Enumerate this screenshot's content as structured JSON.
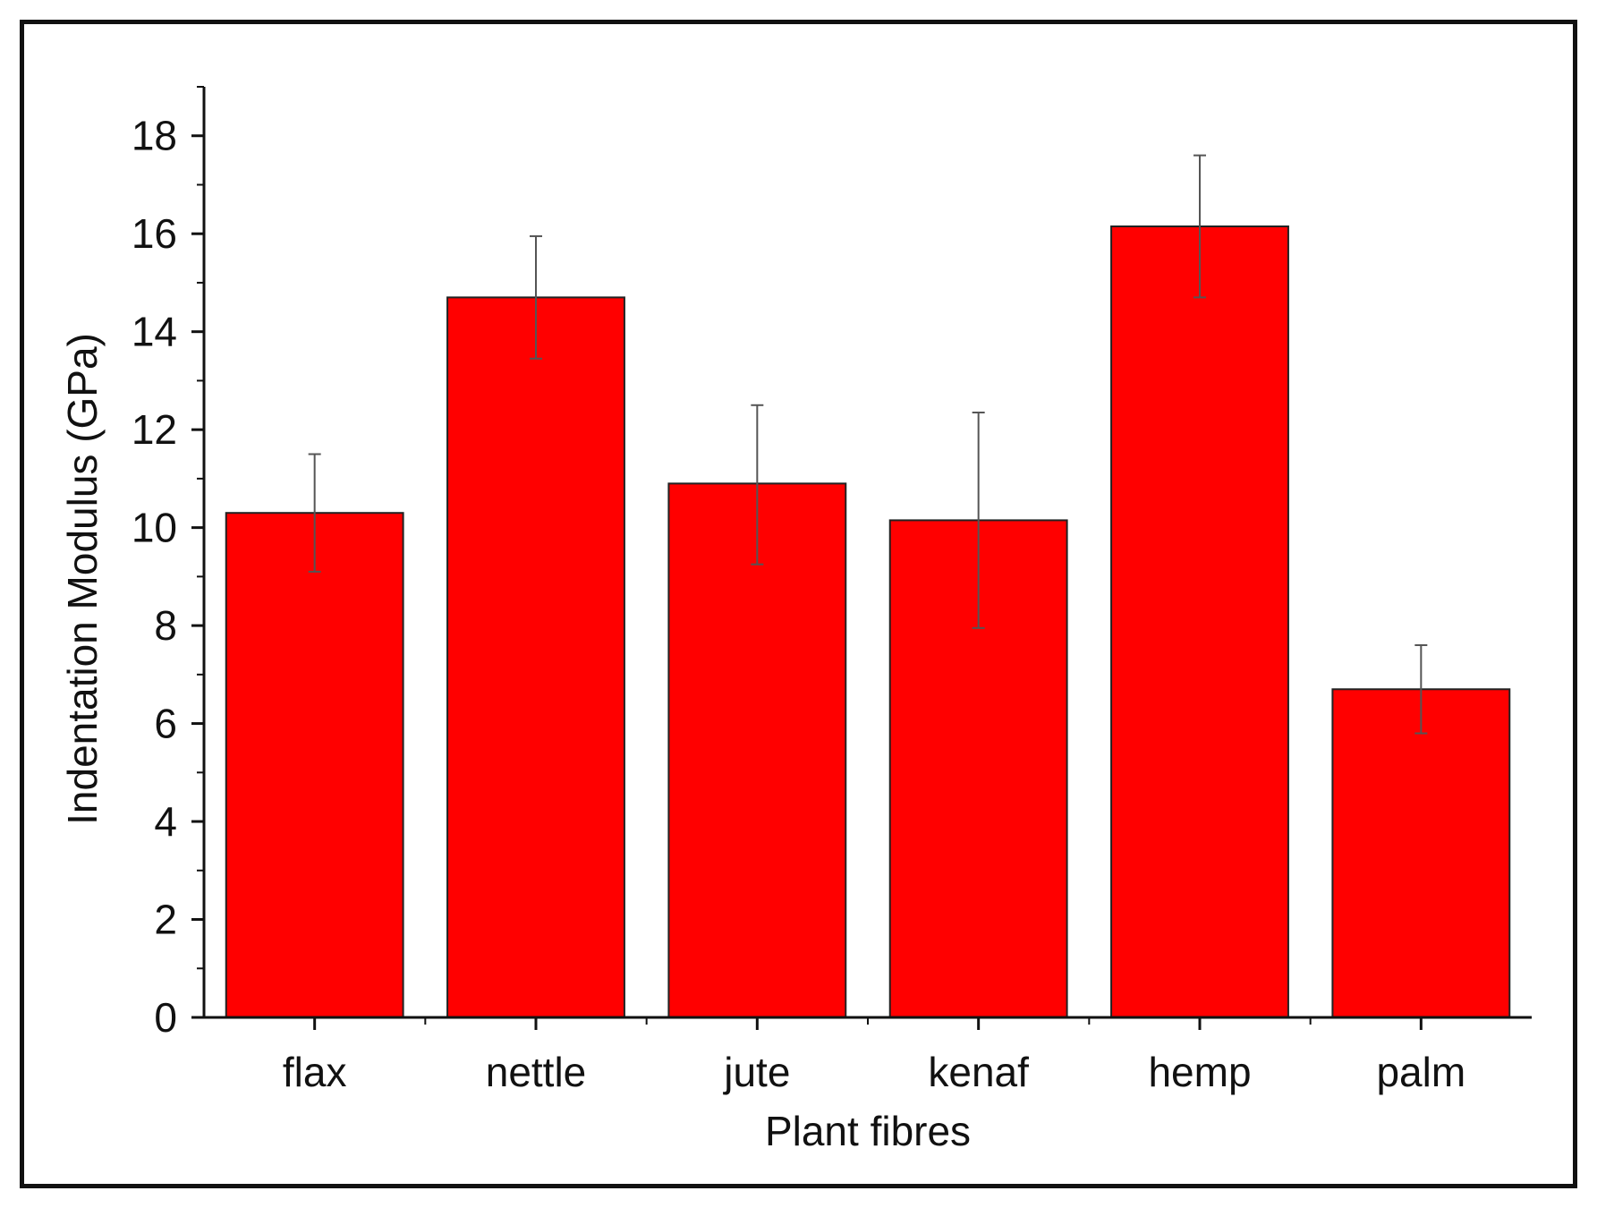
{
  "chart_data": {
    "type": "bar",
    "title": "",
    "xlabel": "Plant fibres",
    "ylabel": "Indentation Modulus (GPa)",
    "categories": [
      "flax",
      "nettle",
      "jute",
      "kenaf",
      "hemp",
      "palm"
    ],
    "values": [
      10.3,
      14.7,
      10.9,
      10.15,
      16.15,
      6.7
    ],
    "error_low": [
      9.1,
      13.45,
      9.25,
      7.95,
      14.7,
      5.8
    ],
    "error_high": [
      11.5,
      15.95,
      12.5,
      12.35,
      17.6,
      7.6
    ],
    "ylim": [
      0,
      19
    ],
    "yticks": [
      0,
      2,
      4,
      6,
      8,
      10,
      12,
      14,
      16,
      18
    ],
    "ytick_labels": [
      "0",
      "2",
      "4",
      "6",
      "8",
      "10",
      "12",
      "14",
      "16",
      "18"
    ],
    "grid": false,
    "bar_color": "#ff0000",
    "error_bar_color": "#555555",
    "axis_color": "#111111"
  }
}
